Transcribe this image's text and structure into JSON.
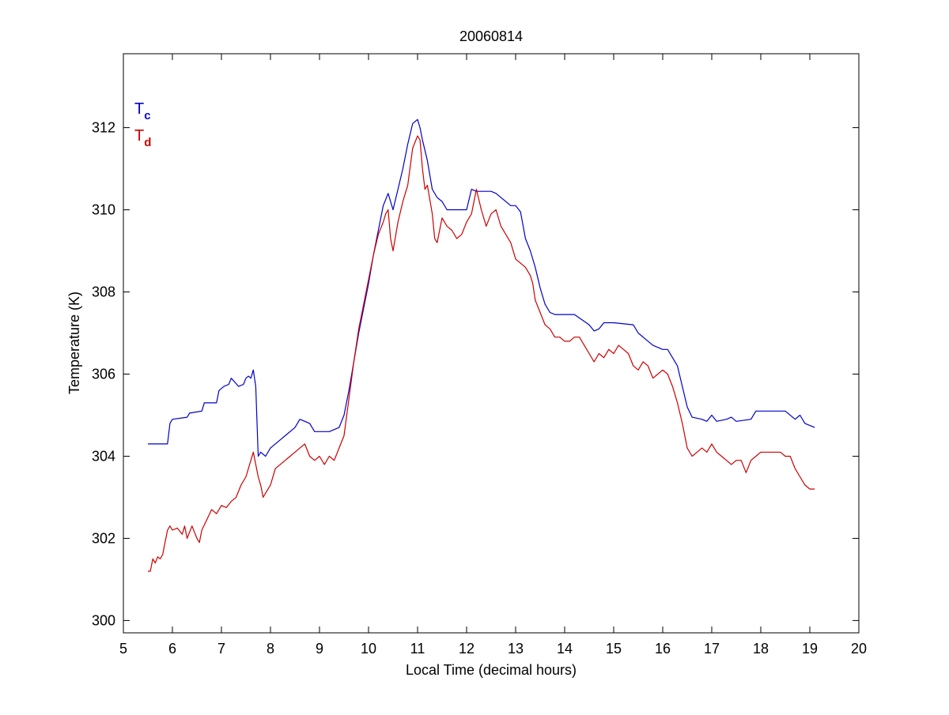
{
  "chart_data": {
    "type": "line",
    "title": "20060814",
    "xlabel": "Local Time (decimal hours)",
    "ylabel": "Temperature (K)",
    "xlim": [
      5,
      20
    ],
    "ylim": [
      299.7,
      313.8
    ],
    "xticks": [
      "5",
      "6",
      "7",
      "8",
      "9",
      "10",
      "11",
      "12",
      "13",
      "14",
      "15",
      "16",
      "17",
      "18",
      "19",
      "20"
    ],
    "yticks": [
      "300",
      "302",
      "304",
      "306",
      "308",
      "310",
      "312"
    ],
    "grid": false,
    "legend": "top-left",
    "legend_entries": [
      {
        "main": "T",
        "sub": "c",
        "color": "#0000cc"
      },
      {
        "main": "T",
        "sub": "d",
        "color": "#cc0000"
      }
    ],
    "series": [
      {
        "color": "#0000cc",
        "x": [
          5.5,
          5.6,
          5.8,
          5.9,
          5.95,
          6.0,
          6.3,
          6.35,
          6.6,
          6.65,
          6.9,
          6.95,
          7.05,
          7.15,
          7.2,
          7.35,
          7.45,
          7.5,
          7.55,
          7.6,
          7.65,
          7.7,
          7.75,
          7.8,
          7.9,
          8.0,
          8.2,
          8.3,
          8.5,
          8.6,
          8.8,
          8.9,
          9.0,
          9.2,
          9.4,
          9.5,
          9.6,
          9.7,
          9.8,
          9.9,
          10.0,
          10.1,
          10.2,
          10.3,
          10.4,
          10.5,
          10.6,
          10.7,
          10.8,
          10.9,
          11.0,
          11.05,
          11.1,
          11.2,
          11.3,
          11.4,
          11.5,
          11.6,
          11.8,
          12.0,
          12.1,
          12.2,
          12.5,
          12.6,
          12.8,
          12.9,
          13.0,
          13.1,
          13.2,
          13.3,
          13.4,
          13.5,
          13.6,
          13.7,
          13.8,
          13.9,
          14.0,
          14.2,
          14.5,
          14.6,
          14.7,
          14.8,
          14.9,
          15.0,
          15.4,
          15.5,
          15.7,
          15.8,
          16.0,
          16.1,
          16.2,
          16.3,
          16.4,
          16.5,
          16.6,
          16.8,
          16.9,
          17.0,
          17.1,
          17.3,
          17.4,
          17.5,
          17.8,
          17.9,
          18.5,
          18.7,
          18.8,
          18.9,
          19.1
        ],
        "values": [
          304.3,
          304.3,
          304.3,
          304.3,
          304.8,
          304.9,
          304.95,
          305.05,
          305.1,
          305.3,
          305.3,
          305.6,
          305.7,
          305.75,
          305.9,
          305.7,
          305.75,
          305.9,
          305.95,
          305.9,
          306.1,
          305.7,
          304.0,
          304.1,
          304.0,
          304.2,
          304.4,
          304.5,
          304.7,
          304.9,
          304.8,
          304.6,
          304.6,
          304.6,
          304.7,
          305.0,
          305.6,
          306.3,
          307.0,
          307.6,
          308.2,
          308.9,
          309.5,
          310.1,
          310.4,
          310.0,
          310.5,
          311.0,
          311.6,
          312.1,
          312.2,
          312.0,
          311.7,
          311.2,
          310.5,
          310.3,
          310.2,
          310.0,
          310.0,
          310.0,
          310.5,
          310.45,
          310.45,
          310.4,
          310.2,
          310.1,
          310.1,
          309.95,
          309.3,
          309.0,
          308.6,
          308.1,
          307.7,
          307.5,
          307.45,
          307.45,
          307.45,
          307.45,
          307.2,
          307.05,
          307.1,
          307.25,
          307.25,
          307.25,
          307.2,
          307.0,
          306.8,
          306.7,
          306.6,
          306.6,
          306.4,
          306.2,
          305.7,
          305.2,
          304.95,
          304.9,
          304.85,
          305.0,
          304.85,
          304.9,
          304.95,
          304.85,
          304.9,
          305.1,
          305.1,
          304.9,
          305.0,
          304.8,
          304.7
        ]
      },
      {
        "color": "#cc0000",
        "x": [
          5.5,
          5.55,
          5.6,
          5.65,
          5.7,
          5.75,
          5.8,
          5.85,
          5.9,
          5.95,
          6.0,
          6.1,
          6.2,
          6.25,
          6.3,
          6.4,
          6.5,
          6.55,
          6.6,
          6.7,
          6.8,
          6.9,
          7.0,
          7.1,
          7.2,
          7.3,
          7.4,
          7.5,
          7.6,
          7.65,
          7.7,
          7.75,
          7.8,
          7.85,
          7.9,
          8.0,
          8.1,
          8.2,
          8.3,
          8.4,
          8.5,
          8.6,
          8.7,
          8.8,
          8.9,
          9.0,
          9.1,
          9.2,
          9.3,
          9.4,
          9.5,
          9.6,
          9.7,
          9.8,
          9.9,
          10.0,
          10.1,
          10.2,
          10.3,
          10.35,
          10.4,
          10.45,
          10.5,
          10.6,
          10.7,
          10.8,
          10.9,
          11.0,
          11.05,
          11.1,
          11.15,
          11.2,
          11.3,
          11.35,
          11.4,
          11.5,
          11.6,
          11.7,
          11.8,
          11.9,
          12.0,
          12.1,
          12.2,
          12.3,
          12.4,
          12.5,
          12.6,
          12.7,
          12.8,
          12.9,
          13.0,
          13.1,
          13.2,
          13.3,
          13.35,
          13.4,
          13.5,
          13.6,
          13.7,
          13.8,
          13.9,
          14.0,
          14.1,
          14.2,
          14.3,
          14.4,
          14.5,
          14.6,
          14.7,
          14.8,
          14.9,
          15.0,
          15.1,
          15.2,
          15.3,
          15.4,
          15.5,
          15.6,
          15.7,
          15.8,
          15.9,
          16.0,
          16.1,
          16.2,
          16.3,
          16.4,
          16.5,
          16.6,
          16.7,
          16.8,
          16.9,
          17.0,
          17.1,
          17.2,
          17.3,
          17.4,
          17.5,
          17.6,
          17.7,
          17.8,
          17.9,
          18.0,
          18.2,
          18.4,
          18.5,
          18.6,
          18.7,
          18.8,
          18.9,
          19.0,
          19.1
        ],
        "values": [
          301.2,
          301.2,
          301.5,
          301.4,
          301.55,
          301.5,
          301.6,
          301.9,
          302.2,
          302.3,
          302.2,
          302.25,
          302.1,
          302.3,
          302.0,
          302.3,
          302.0,
          301.9,
          302.2,
          302.45,
          302.7,
          302.6,
          302.8,
          302.75,
          302.9,
          303.0,
          303.3,
          303.5,
          303.9,
          304.1,
          303.8,
          303.5,
          303.3,
          303.0,
          303.1,
          303.3,
          303.7,
          303.8,
          303.9,
          304.0,
          304.1,
          304.2,
          304.3,
          304.0,
          303.9,
          304.0,
          303.8,
          304.0,
          303.9,
          304.2,
          304.5,
          305.4,
          306.3,
          307.1,
          307.7,
          308.3,
          308.9,
          309.4,
          309.7,
          309.9,
          310.0,
          309.3,
          309.0,
          309.7,
          310.2,
          310.6,
          311.5,
          311.8,
          311.7,
          311.0,
          310.5,
          310.6,
          309.9,
          309.3,
          309.2,
          309.8,
          309.6,
          309.5,
          309.3,
          309.4,
          309.7,
          309.9,
          310.5,
          310.0,
          309.6,
          309.9,
          310.0,
          309.6,
          309.4,
          309.2,
          308.8,
          308.7,
          308.6,
          308.4,
          308.2,
          307.8,
          307.5,
          307.2,
          307.1,
          306.9,
          306.9,
          306.8,
          306.8,
          306.9,
          306.9,
          306.7,
          306.5,
          306.3,
          306.5,
          306.4,
          306.6,
          306.5,
          306.7,
          306.6,
          306.5,
          306.2,
          306.1,
          306.3,
          306.2,
          305.9,
          306.0,
          306.1,
          306.0,
          305.7,
          305.3,
          304.8,
          304.2,
          304.0,
          304.1,
          304.2,
          304.1,
          304.3,
          304.1,
          304.0,
          303.9,
          303.8,
          303.9,
          303.9,
          303.6,
          303.9,
          304.0,
          304.1,
          304.1,
          304.1,
          304.0,
          304.0,
          303.7,
          303.5,
          303.3,
          303.2,
          303.2
        ]
      }
    ]
  }
}
